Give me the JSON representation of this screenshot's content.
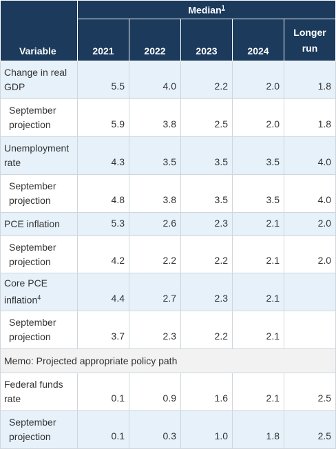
{
  "header": {
    "median_label": "Median",
    "median_note": "1",
    "variable_label": "Variable",
    "years": [
      "2021",
      "2022",
      "2023",
      "2024"
    ],
    "longer_run_line1": "Longer",
    "longer_run_line2": "run"
  },
  "rows": {
    "gdp": {
      "label_line1": "Change in real",
      "label_line2": "GDP",
      "values": [
        "5.5",
        "4.0",
        "2.2",
        "2.0",
        "1.8"
      ]
    },
    "gdp_sep": {
      "label_line1": "September",
      "label_line2": "projection",
      "values": [
        "5.9",
        "3.8",
        "2.5",
        "2.0",
        "1.8"
      ]
    },
    "unemp": {
      "label_line1": "Unemployment",
      "label_line2": "rate",
      "values": [
        "4.3",
        "3.5",
        "3.5",
        "3.5",
        "4.0"
      ]
    },
    "unemp_sep": {
      "label_line1": "September",
      "label_line2": "projection",
      "values": [
        "4.8",
        "3.8",
        "3.5",
        "3.5",
        "4.0"
      ]
    },
    "pce": {
      "label": "PCE inflation",
      "values": [
        "5.3",
        "2.6",
        "2.3",
        "2.1",
        "2.0"
      ]
    },
    "pce_sep": {
      "label_line1": "September",
      "label_line2": "projection",
      "values": [
        "4.2",
        "2.2",
        "2.2",
        "2.1",
        "2.0"
      ]
    },
    "core": {
      "label_line1": "Core PCE",
      "label_line2": "inflation",
      "note": "4",
      "values": [
        "4.4",
        "2.7",
        "2.3",
        "2.1",
        ""
      ]
    },
    "core_sep": {
      "label_line1": "September",
      "label_line2": "projection",
      "values": [
        "3.7",
        "2.3",
        "2.2",
        "2.1",
        ""
      ]
    },
    "memo": {
      "label": "Memo: Projected appropriate policy path"
    },
    "ffr": {
      "label_line1": "Federal funds",
      "label_line2": "rate",
      "values": [
        "0.1",
        "0.9",
        "1.6",
        "2.1",
        "2.5"
      ]
    },
    "ffr_sep": {
      "label_line1": "September",
      "label_line2": "projection",
      "values": [
        "0.1",
        "0.3",
        "1.0",
        "1.8",
        "2.5"
      ]
    }
  }
}
